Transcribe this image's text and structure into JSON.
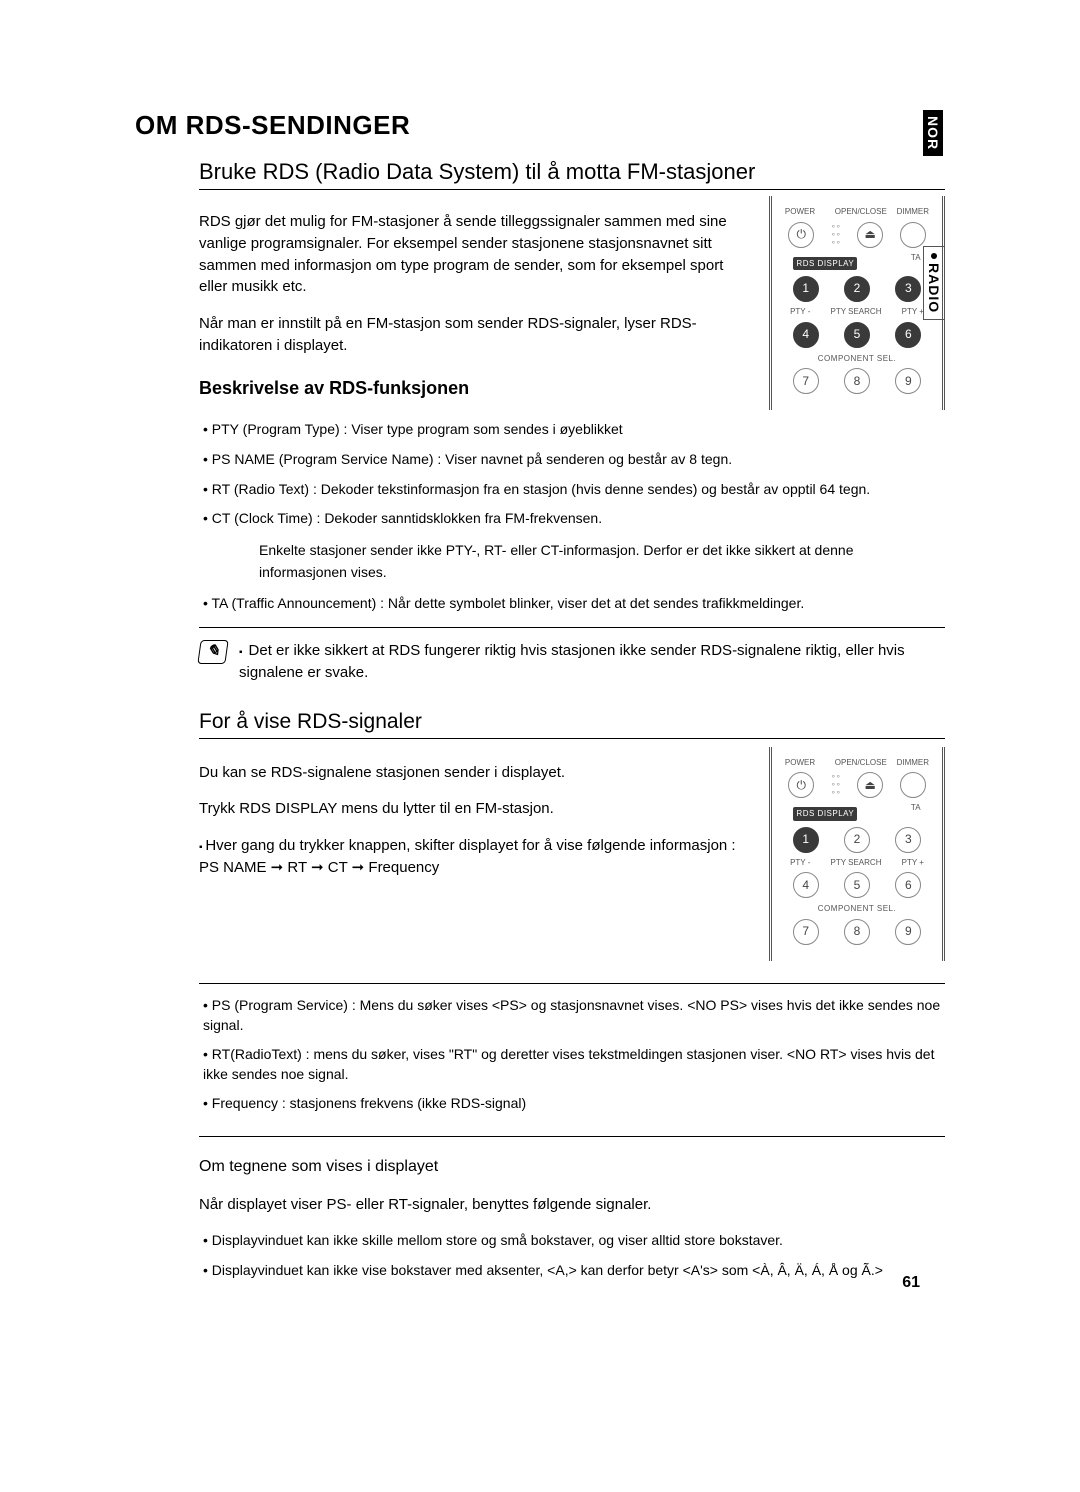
{
  "side": {
    "lang": "NOR",
    "section": "RADIO"
  },
  "title": "OM RDS-SENDINGER",
  "h2a": "Bruke RDS (Radio Data System) til å motta FM-stasjoner",
  "intro1": "RDS gjør det mulig for FM-stasjoner å sende tilleggssignaler sammen med sine vanlige programsignaler. For eksempel sender stasjonene stasjonsnavnet sitt sammen med informasjon om type program de sender, som for eksempel sport eller musikk etc.",
  "intro2": "Når man er innstilt på en FM-stasjon som sender RDS-signaler, lyser RDS-indikatoren i displayet.",
  "funcHeading": "Beskrivelse av RDS-funksjonen",
  "func": {
    "pty": "PTY (Program Type) : Viser type program som sendes i øyeblikket",
    "ps": "PS NAME (Program Service Name) : Viser navnet på senderen og består av 8 tegn.",
    "rt": "RT (Radio Text) : Dekoder tekstinformasjon fra en stasjon (hvis denne sendes) og består av opptil 64 tegn.",
    "ct": "CT (Clock Time) : Dekoder sanntidsklokken fra FM-frekvensen.",
    "ctNote": "Enkelte stasjoner sender ikke PTY-, RT- eller CT-informasjon. Derfor er det ikke sikkert at denne informasjonen vises.",
    "ta": "TA (Traffic Announcement) : Når dette symbolet blinker, viser det at det sendes trafikkmeldinger."
  },
  "note": "Det er ikke sikkert at RDS fungerer riktig hvis stasjonen ikke sender RDS-signalene riktig, eller hvis signalene er svake.",
  "h2b": "For å vise RDS-signaler",
  "view1": "Du kan se RDS-signalene stasjonen sender i displayet.",
  "view2": "Trykk RDS DISPLAY mens du lytter til en FM-stasjon.",
  "view3": "Hver gang du trykker knappen, skifter displayet for å vise følgende informasjon : PS NAME ➞ RT ➞ CT ➞ Frequency",
  "defs": {
    "ps": "PS (Program Service) : Mens du søker vises <PS> og stasjonsnavnet vises. <NO PS> vises hvis det ikke sendes noe signal.",
    "rt": "RT(RadioText) : mens du søker, vises \"RT\" og deretter vises tekstmeldingen stasjonen viser. <NO RT> vises hvis det ikke sendes noe signal.",
    "freq": "Frequency : stasjonens frekvens (ikke RDS-signal)"
  },
  "charsHeading": "Om tegnene som vises i displayet",
  "chars1": "Når displayet viser PS- eller RT-signaler, benyttes følgende signaler.",
  "chars2": "Displayvinduet kan ikke skille mellom store og små bokstaver, og viser alltid store bokstaver.",
  "chars3": "Displayvinduet kan ikke vise bokstaver med aksenter, <A,> kan derfor betyr <A's> som  <À, Â, Ä, Á, Å og Ã.>",
  "remote": {
    "row1": [
      "POWER",
      "",
      "OPEN/CLOSE",
      "DIMMER"
    ],
    "row2Labels": [
      "RDS DISPLAY",
      "",
      "TA"
    ],
    "row2": [
      "1",
      "2",
      "3"
    ],
    "row3Labels": [
      "PTY -",
      "PTY SEARCH",
      "PTY +"
    ],
    "row3": [
      "4",
      "5",
      "6"
    ],
    "row4Label": "COMPONENT SEL.",
    "row4": [
      "7",
      "8",
      "9"
    ],
    "highlightA": [
      0,
      1,
      2,
      3,
      4,
      5
    ],
    "highlightB": [
      0
    ]
  },
  "pageNum": "61"
}
